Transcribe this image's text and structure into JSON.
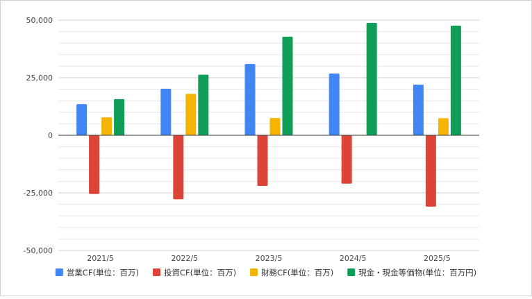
{
  "chart_data": {
    "type": "bar",
    "categories": [
      "2021/5",
      "2022/5",
      "2023/5",
      "2024/5",
      "2025/5"
    ],
    "series": [
      {
        "name": "営業CF(単位：百万)",
        "color": "#4285f4",
        "values": [
          13500,
          20200,
          31000,
          26800,
          22000
        ]
      },
      {
        "name": "投資CF(単位：百万)",
        "color": "#db4437",
        "values": [
          -25500,
          -27800,
          -22000,
          -21000,
          -31000
        ]
      },
      {
        "name": "財務CF(単位：百万)",
        "color": "#f4b400",
        "values": [
          7800,
          18000,
          7500,
          200,
          7400
        ]
      },
      {
        "name": "現金・現金等価物(単位：百万円)",
        "color": "#0f9d58",
        "values": [
          15700,
          26300,
          42800,
          48800,
          47600
        ]
      }
    ],
    "ylim": [
      -50000,
      50000
    ],
    "yticks": [
      50000,
      25000,
      0,
      -25000,
      -50000
    ],
    "ytick_labels": [
      "50,000",
      "25,000",
      "0",
      "-25,000",
      "-50,000"
    ],
    "grid": true,
    "legend_position": "bottom",
    "title": "",
    "xlabel": "",
    "ylabel": ""
  }
}
